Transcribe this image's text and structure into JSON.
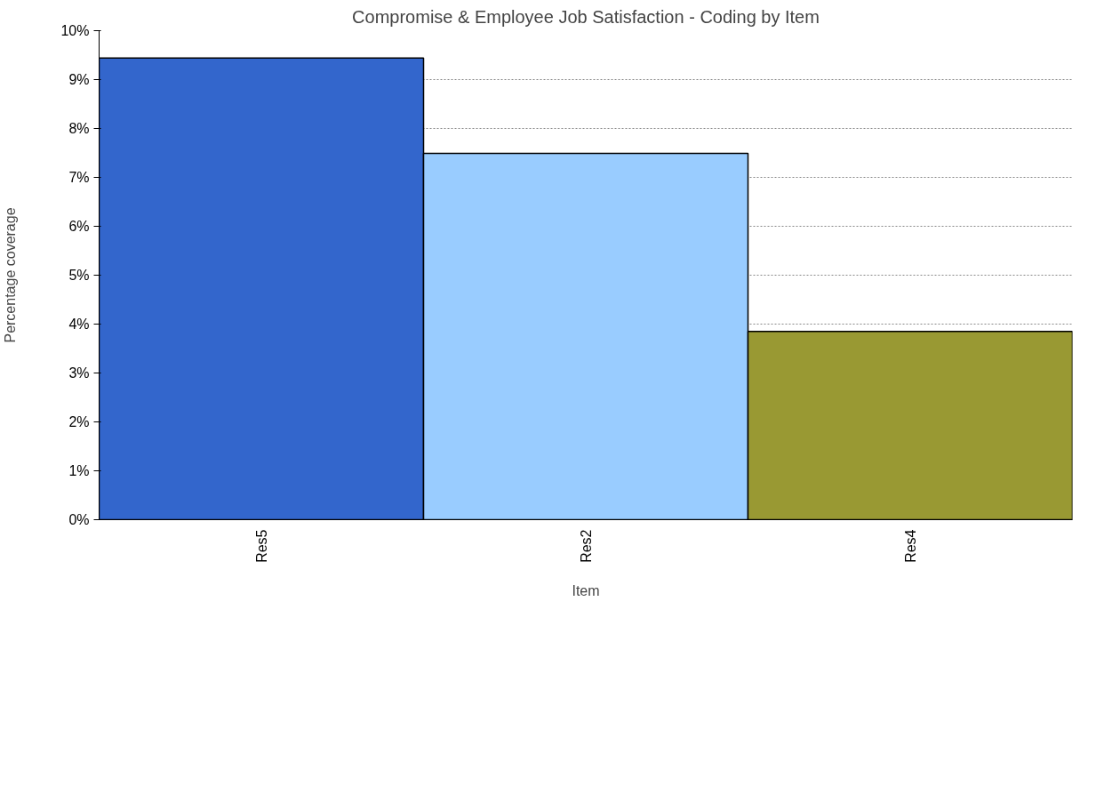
{
  "chart_data": {
    "type": "bar",
    "title": "Compromise & Employee Job Satisfaction - Coding by Item",
    "xlabel": "Item",
    "ylabel": "Percentage coverage",
    "categories": [
      "Res5",
      "Res2",
      "Res4"
    ],
    "values": [
      9.44,
      7.49,
      3.85
    ],
    "colors": [
      "#3366cc",
      "#99ccff",
      "#999933"
    ],
    "ylim": [
      0,
      10
    ],
    "yticks": [
      {
        "value": 0,
        "label": "0%"
      },
      {
        "value": 1,
        "label": "1%"
      },
      {
        "value": 2,
        "label": "2%"
      },
      {
        "value": 3,
        "label": "3%"
      },
      {
        "value": 4,
        "label": "4%"
      },
      {
        "value": 5,
        "label": "5%"
      },
      {
        "value": 6,
        "label": "6%"
      },
      {
        "value": 7,
        "label": "7%"
      },
      {
        "value": 8,
        "label": "8%"
      },
      {
        "value": 9,
        "label": "9%"
      },
      {
        "value": 10,
        "label": "10%"
      }
    ],
    "grid": "y"
  }
}
